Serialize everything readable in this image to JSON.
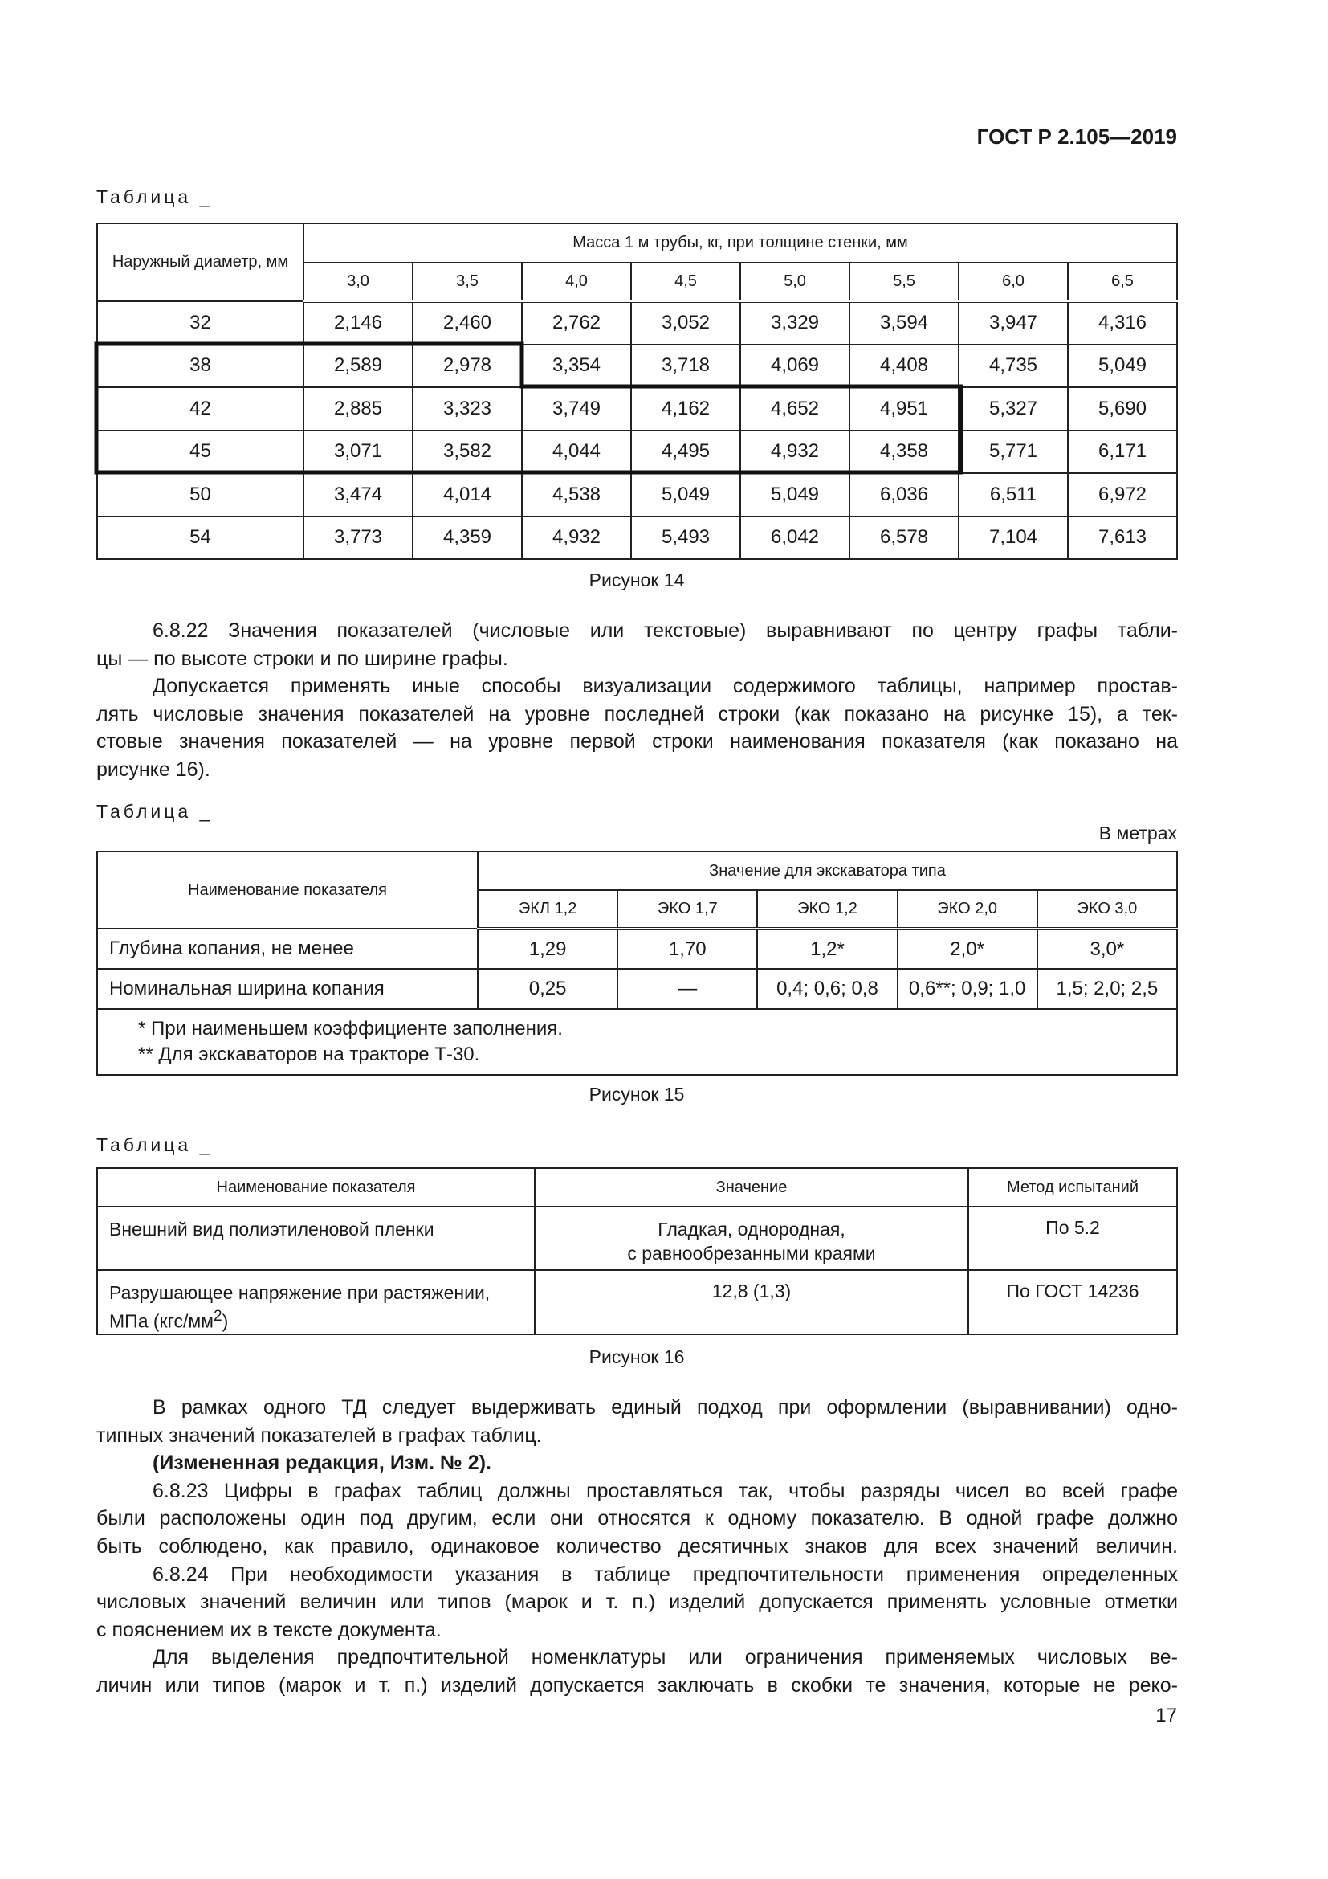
{
  "header": {
    "standard": "ГОСТ Р 2.105—2019"
  },
  "table_caption": "Таблица _",
  "table1": {
    "col1_header": "Наружный диаметр, мм",
    "group_header": "Масса 1 м трубы, кг, при толщине стенки, мм",
    "thickness": [
      "3,0",
      "3,5",
      "4,0",
      "4,5",
      "5,0",
      "5,5",
      "6,0",
      "6,5"
    ],
    "rows": [
      {
        "d": "32",
        "v": [
          "2,146",
          "2,460",
          "2,762",
          "3,052",
          "3,329",
          "3,594",
          "3,947",
          "4,316"
        ]
      },
      {
        "d": "38",
        "v": [
          "2,589",
          "2,978",
          "3,354",
          "3,718",
          "4,069",
          "4,408",
          "4,735",
          "5,049"
        ]
      },
      {
        "d": "42",
        "v": [
          "2,885",
          "3,323",
          "3,749",
          "4,162",
          "4,652",
          "4,951",
          "5,327",
          "5,690"
        ]
      },
      {
        "d": "45",
        "v": [
          "3,071",
          "3,582",
          "4,044",
          "4,495",
          "4,932",
          "4,358",
          "5,771",
          "6,171"
        ]
      },
      {
        "d": "50",
        "v": [
          "3,474",
          "4,014",
          "4,538",
          "5,049",
          "5,049",
          "6,036",
          "6,511",
          "6,972"
        ]
      },
      {
        "d": "54",
        "v": [
          "3,773",
          "4,359",
          "4,932",
          "5,493",
          "6,042",
          "6,578",
          "7,104",
          "7,613"
        ]
      }
    ],
    "figure": "Рисунок 14"
  },
  "para1": {
    "lines": [
      "6.8.22 Значения показателей (числовые или текстовые) выравнивают по центру графы табли-",
      "цы — по высоте строки и по ширине графы.",
      "Допускается применять иные способы визуализации содержимого таблицы, например простав-",
      "лять числовые значения показателей на уровне последней строки (как показано на рисунке 15), а тек-",
      "стовые значения показателей — на уровне первой строки наименования показателя (как показано на",
      "рисунке 16)."
    ]
  },
  "table2": {
    "units": "В метрах",
    "col1_header": "Наименование показателя",
    "group_header": "Значение для экскаватора типа",
    "types": [
      "ЭКЛ 1,2",
      "ЭКО 1,7",
      "ЭКО 1,2",
      "ЭКО 2,0",
      "ЭКО 3,0"
    ],
    "rows": [
      {
        "name": "Глубина копания, не менее",
        "v": [
          "1,29",
          "1,70",
          "1,2*",
          "2,0*",
          "3,0*"
        ]
      },
      {
        "name": "Номинальная ширина копания",
        "v": [
          "0,25",
          "—",
          "0,4; 0,6; 0,8",
          "0,6**; 0,9; 1,0",
          "1,5; 2,0; 2,5"
        ]
      }
    ],
    "notes": [
      "*  При наименьшем коэффициенте заполнения.",
      "**  Для экскаваторов на тракторе Т-30."
    ],
    "figure": "Рисунок 15"
  },
  "table3": {
    "headers": [
      "Наименование показателя",
      "Значение",
      "Метод испытаний"
    ],
    "rows": [
      {
        "name": "Внешний вид полиэтиленовой пленки",
        "value_lines": [
          "Гладкая, однородная,",
          "с равнообрезанными краями"
        ],
        "method": "По 5.2"
      },
      {
        "name_line1": "Разрушающее напряжение при растяжении,",
        "name_line2": "МПа (кгс/мм",
        "name_sup": "2",
        "name_end": ")",
        "value": "12,8 (1,3)",
        "method": "По ГОСТ 14236"
      }
    ],
    "figure": "Рисунок 16"
  },
  "para2": {
    "lines": [
      "В рамках одного ТД следует выдерживать единый подход при оформлении (выравнивании) одно-",
      "типных значений показателей в графах таблиц.",
      "(Измененная редакция, Изм. № 2).",
      "6.8.23 Цифры в графах таблиц должны проставляться так, чтобы разряды чисел во всей графе",
      "были расположены один под другим, если они относятся к одному показателю. В одной графе должно",
      "быть соблюдено, как правило, одинаковое количество десятичных знаков для всех значений величин.",
      "6.8.24 При необходимости указания в таблице предпочтительности применения определенных",
      "числовых значений величин или типов (марок и т. п.) изделий допускается применять условные отметки",
      "с пояснением их в тексте документа.",
      "Для выделения предпочтительной номенклатуры или ограничения применяемых числовых ве-",
      "личин или типов (марок и т. п.) изделий допускается заключать в скобки те значения, которые не реко-"
    ]
  },
  "page_number": "17"
}
